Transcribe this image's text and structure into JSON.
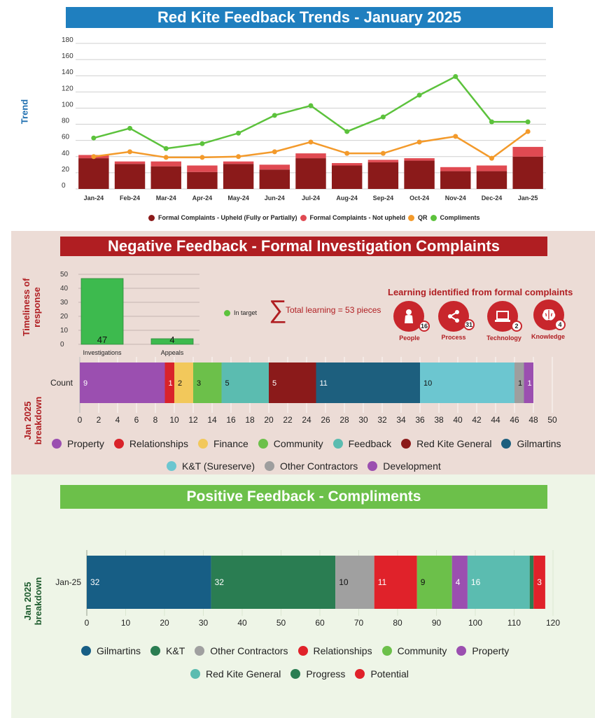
{
  "colors": {
    "upheld": "#8b1a1a",
    "not_upheld": "#e04a52",
    "qr": "#f39a2b",
    "compliments": "#5cc23c",
    "title_blue": "#1f7fbf",
    "title_red": "#b01e22",
    "title_green": "#6cc04a"
  },
  "trend": {
    "title": "Red Kite Feedback Trends - January 2025",
    "ylabel": "Trend",
    "chart_data": {
      "type": "bar",
      "categories": [
        "Jan-24",
        "Feb-24",
        "Mar-24",
        "Apr-24",
        "May-24",
        "Jun-24",
        "Jul-24",
        "Aug-24",
        "Sep-24",
        "Oct-24",
        "Nov-24",
        "Dec-24",
        "Jan-25"
      ],
      "series": [
        {
          "name": "Formal Complaints - Upheld (Fully or Partially)",
          "kind": "bar",
          "values": [
            38,
            31,
            28,
            21,
            31,
            24,
            38,
            29,
            33,
            35,
            22,
            22,
            40
          ]
        },
        {
          "name": "Formal Complaints - Not upheld",
          "kind": "bar",
          "values": [
            4,
            3,
            6,
            8,
            3,
            6,
            6,
            3,
            3,
            3,
            5,
            7,
            12
          ]
        },
        {
          "name": "QR",
          "kind": "line",
          "values": [
            40,
            46,
            39,
            39,
            40,
            46,
            58,
            44,
            44,
            58,
            65,
            38,
            71
          ]
        },
        {
          "name": "Compliments",
          "kind": "line",
          "values": [
            63,
            75,
            50,
            56,
            69,
            91,
            103,
            71,
            89,
            116,
            139,
            83,
            83
          ]
        }
      ],
      "ylim": [
        0,
        180
      ],
      "yticks": [
        0,
        20,
        40,
        60,
        80,
        100,
        120,
        140,
        160,
        180
      ]
    },
    "legend": [
      "Formal Complaints - Upheld (Fully or Partially)",
      "Formal Complaints - Not upheld",
      "QR",
      "Compliments"
    ]
  },
  "negative": {
    "title": "Negative Feedback - Formal Investigation Complaints",
    "timeliness_label": "Timeliness of response",
    "timeliness_chart": {
      "type": "bar",
      "categories": [
        "Investigations",
        "Appeals"
      ],
      "values": [
        47,
        4
      ],
      "value_labels": [
        "47",
        "4"
      ],
      "ylim": [
        0,
        50
      ],
      "yticks": [
        0,
        10,
        20,
        30,
        40,
        50
      ],
      "legend": "In target"
    },
    "total_learning": "Total learning = 53 pieces",
    "learning_title": "Learning identified from formal complaints",
    "learning": [
      {
        "label": "People",
        "count": "16",
        "icon": "person-icon"
      },
      {
        "label": "Process",
        "count": "31",
        "icon": "share-icon"
      },
      {
        "label": "Technology",
        "count": "2",
        "icon": "laptop-icon"
      },
      {
        "label": "Knowledge",
        "count": "4",
        "icon": "brain-icon"
      }
    ],
    "breakdown_label": "Jan 2025 breakdown",
    "breakdown_chart": {
      "type": "bar",
      "orientation": "horizontal-stacked",
      "category": "Count",
      "segments": [
        {
          "name": "Property",
          "value": 9,
          "color": "#9b4fb0"
        },
        {
          "name": "Relationships",
          "value": 1,
          "color": "#d9232a"
        },
        {
          "name": "Finance",
          "value": 2,
          "color": "#f2c85b"
        },
        {
          "name": "Community",
          "value": 3,
          "color": "#6cc04a"
        },
        {
          "name": "Feedback",
          "value": 5,
          "color": "#5bbcb0"
        },
        {
          "name": "Red Kite General",
          "value": 5,
          "color": "#8b1a1a"
        },
        {
          "name": "Gilmartins",
          "value": 11,
          "color": "#1d5f7e"
        },
        {
          "name": "K&T (Sureserve)",
          "value": 10,
          "color": "#6cc6d0"
        },
        {
          "name": "Other Contractors",
          "value": 1,
          "color": "#9e9e9e"
        },
        {
          "name": "Development",
          "value": 1,
          "color": "#9b4fb0"
        }
      ],
      "xlim": [
        0,
        50
      ],
      "xticks": [
        0,
        2,
        4,
        6,
        8,
        10,
        12,
        14,
        16,
        18,
        20,
        22,
        24,
        26,
        28,
        30,
        32,
        34,
        36,
        38,
        40,
        42,
        44,
        46,
        48,
        50
      ]
    }
  },
  "positive": {
    "title": "Positive Feedback - Compliments",
    "breakdown_label": "Jan 2025 breakdown",
    "breakdown_chart": {
      "type": "bar",
      "orientation": "horizontal-stacked",
      "category": "Jan-25",
      "segments": [
        {
          "name": "Gilmartins",
          "value": 32,
          "color": "#175e85"
        },
        {
          "name": "K&T",
          "value": 32,
          "color": "#2a7d52"
        },
        {
          "name": "Other Contractors",
          "value": 10,
          "color": "#a0a0a0"
        },
        {
          "name": "Relationships",
          "value": 11,
          "color": "#e0222a"
        },
        {
          "name": "Community",
          "value": 9,
          "color": "#6cc04a"
        },
        {
          "name": "Property",
          "value": 4,
          "color": "#9b4fb0"
        },
        {
          "name": "Red Kite General",
          "value": 16,
          "color": "#5bbcb0"
        },
        {
          "name": "Progress",
          "value": 1,
          "color": "#2a7d52"
        },
        {
          "name": "Potential",
          "value": 3,
          "color": "#e0222a"
        }
      ],
      "xlim": [
        0,
        120
      ],
      "xticks": [
        0,
        10,
        20,
        30,
        40,
        50,
        60,
        70,
        80,
        90,
        100,
        110,
        120
      ]
    }
  }
}
